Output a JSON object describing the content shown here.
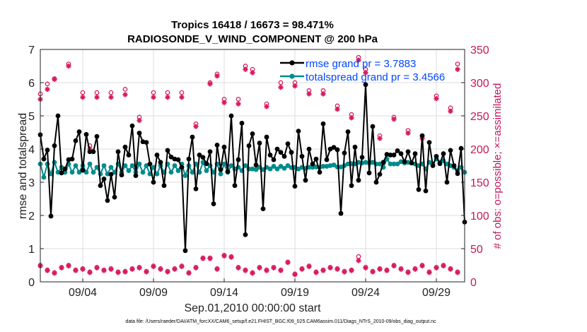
{
  "chart_data": {
    "type": "line",
    "title": "Tropics 16418 / 16673 = 98.471%",
    "subtitle": "RADIOSONDE_V_WIND_COMPONENT @ 200 hPa",
    "xlabel": "Sep.01,2010 00:00:00 start",
    "ylabel": "rmse and totalspread",
    "y2label": "# of obs: o=possible; ×=assimilated",
    "footer": "data file: /Users/raeder/DAI/ATM_forcXX/CAM6_setup/f.e21.FHIST_BGC.f09_025.CAM6assim.011/Diags_NTrS_2010-09/obs_diag_output.nc",
    "xlim": [
      1.0,
      31.0
    ],
    "ylim": [
      0,
      7
    ],
    "y2lim": [
      0,
      350
    ],
    "xticks": [
      4,
      9,
      14,
      19,
      24,
      29
    ],
    "xtick_labels": [
      "09/04",
      "09/09",
      "09/14",
      "09/19",
      "09/24",
      "09/29"
    ],
    "yticks": [
      0,
      1,
      2,
      3,
      4,
      5,
      6,
      7
    ],
    "y2ticks": [
      0,
      50,
      100,
      150,
      200,
      250,
      300,
      350
    ],
    "legend": [
      {
        "name": "rmse grand pr = 3.7883",
        "color": "#000000"
      },
      {
        "name": "totalspread grand pr = 3.4566",
        "color": "#008b8b"
      }
    ],
    "series": [
      {
        "name": "rmse",
        "color": "#000000",
        "x": [
          1.0,
          1.25,
          1.5,
          1.75,
          2.0,
          2.25,
          2.5,
          2.75,
          3.0,
          3.25,
          3.5,
          3.75,
          4.0,
          4.25,
          4.5,
          4.75,
          5.0,
          5.25,
          5.5,
          5.75,
          6.0,
          6.25,
          6.5,
          6.75,
          7.0,
          7.25,
          7.5,
          7.75,
          8.0,
          8.25,
          8.5,
          8.75,
          9.0,
          9.25,
          9.5,
          9.75,
          10.0,
          10.25,
          10.5,
          10.75,
          11.0,
          11.25,
          11.5,
          11.75,
          12.0,
          12.25,
          12.5,
          12.75,
          13.0,
          13.25,
          13.5,
          13.75,
          14.0,
          14.25,
          14.5,
          14.75,
          15.0,
          15.25,
          15.5,
          15.75,
          16.0,
          16.25,
          16.5,
          16.75,
          17.0,
          17.25,
          17.5,
          17.75,
          18.0,
          18.25,
          18.5,
          18.75,
          19.0,
          19.25,
          19.5,
          19.75,
          20.0,
          20.25,
          20.5,
          20.75,
          21.0,
          21.25,
          21.5,
          21.75,
          22.0,
          22.25,
          22.5,
          22.75,
          23.0,
          23.25,
          23.5,
          23.75,
          24.0,
          24.25,
          24.5,
          24.75,
          25.0,
          25.25,
          25.5,
          25.75,
          26.0,
          26.25,
          26.5,
          26.75,
          27.0,
          27.25,
          27.5,
          27.75,
          28.0,
          28.25,
          28.5,
          28.75,
          29.0,
          29.25,
          29.5,
          29.75,
          30.0,
          30.25,
          30.5,
          30.75,
          31.0
        ],
        "values": [
          4.43,
          3.7,
          3.97,
          1.98,
          4.1,
          5.0,
          3.28,
          3.4,
          3.68,
          3.7,
          4.25,
          4.52,
          3.36,
          4.44,
          3.92,
          3.92,
          4.38,
          2.9,
          3.1,
          2.45,
          3.24,
          2.55,
          3.92,
          3.22,
          4.06,
          3.82,
          4.7,
          3.2,
          4.48,
          4.22,
          4.2,
          3.55,
          3.0,
          3.82,
          3.6,
          2.9,
          3.96,
          3.76,
          3.7,
          3.68,
          3.45,
          0.94,
          3.7,
          4.36,
          2.8,
          3.82,
          3.75,
          3.56,
          3.92,
          2.35,
          4.12,
          3.38,
          4.06,
          3.32,
          5.0,
          2.9,
          3.68,
          4.78,
          1.42,
          4.1,
          4.46,
          3.52,
          4.18,
          2.2,
          4.36,
          3.82,
          3.68,
          4.0,
          3.9,
          3.78,
          4.16,
          3.9,
          2.88,
          4.54,
          3.78,
          3.06,
          4.0,
          3.55,
          3.7,
          3.3,
          4.76,
          3.68,
          4.0,
          4.05,
          3.98,
          2.06,
          3.88,
          4.52,
          2.9,
          4.06,
          3.06,
          3.75,
          5.94,
          3.28,
          4.68,
          3.0,
          3.24,
          3.6,
          3.84,
          3.82,
          3.82,
          3.95,
          3.86,
          3.62,
          3.92,
          3.58,
          3.86,
          2.78,
          4.4,
          2.74,
          4.2,
          3.5,
          3.78,
          3.56,
          3.86,
          3.0,
          3.96,
          3.5,
          3.26,
          4.02,
          1.8
        ]
      },
      {
        "name": "totalspread",
        "color": "#008b8b",
        "x": [
          1.0,
          1.25,
          1.5,
          1.75,
          2.0,
          2.25,
          2.5,
          2.75,
          3.0,
          3.25,
          3.5,
          3.75,
          4.0,
          4.25,
          4.5,
          4.75,
          5.0,
          5.25,
          5.5,
          5.75,
          6.0,
          6.25,
          6.5,
          6.75,
          7.0,
          7.25,
          7.5,
          7.75,
          8.0,
          8.25,
          8.5,
          8.75,
          9.0,
          9.25,
          9.5,
          9.75,
          10.0,
          10.25,
          10.5,
          10.75,
          11.0,
          11.25,
          11.5,
          11.75,
          12.0,
          12.25,
          12.5,
          12.75,
          13.0,
          13.25,
          13.5,
          13.75,
          14.0,
          14.25,
          14.5,
          14.75,
          15.0,
          15.25,
          15.5,
          15.75,
          16.0,
          16.25,
          16.5,
          16.75,
          17.0,
          17.25,
          17.5,
          17.75,
          18.0,
          18.25,
          18.5,
          18.75,
          19.0,
          19.25,
          19.5,
          19.75,
          20.0,
          20.25,
          20.5,
          20.75,
          21.0,
          21.25,
          21.5,
          21.75,
          22.0,
          22.25,
          22.5,
          22.75,
          23.0,
          23.25,
          23.5,
          23.75,
          24.0,
          24.25,
          24.5,
          24.75,
          25.0,
          25.25,
          25.5,
          25.75,
          26.0,
          26.25,
          26.5,
          26.75,
          27.0,
          27.25,
          27.5,
          27.75,
          28.0,
          28.25,
          28.5,
          28.75,
          29.0,
          29.25,
          29.5,
          29.75,
          30.0,
          30.25,
          30.5,
          30.75,
          31.0
        ],
        "values": [
          3.55,
          3.15,
          3.55,
          3.25,
          3.6,
          3.3,
          3.45,
          3.3,
          3.55,
          3.3,
          3.5,
          3.3,
          3.5,
          3.3,
          3.55,
          3.3,
          3.45,
          3.25,
          3.5,
          3.25,
          3.45,
          3.3,
          3.55,
          3.3,
          3.5,
          3.35,
          3.5,
          3.3,
          3.55,
          3.3,
          3.5,
          3.25,
          3.45,
          3.25,
          3.5,
          3.3,
          3.55,
          3.3,
          3.5,
          3.35,
          3.55,
          3.2,
          3.5,
          3.3,
          3.55,
          3.3,
          3.6,
          3.35,
          3.5,
          3.3,
          3.55,
          3.25,
          3.55,
          3.3,
          3.5,
          3.4,
          3.45,
          3.35,
          3.5,
          3.4,
          3.4,
          3.38,
          3.45,
          3.38,
          3.45,
          3.4,
          3.48,
          3.4,
          3.48,
          3.42,
          3.5,
          3.44,
          3.45,
          3.4,
          3.45,
          3.42,
          3.45,
          3.45,
          3.46,
          3.45,
          3.48,
          3.48,
          3.5,
          3.52,
          3.46,
          3.46,
          3.5,
          3.55,
          3.56,
          3.55,
          3.6,
          3.58,
          3.6,
          3.58,
          3.6,
          3.55,
          3.55,
          3.45,
          3.7,
          3.55,
          3.55,
          3.55,
          3.62,
          3.58,
          3.6,
          3.58,
          3.55,
          3.5,
          3.55,
          3.4,
          3.6,
          3.55,
          3.7,
          3.6,
          3.65,
          3.55,
          3.5,
          3.45,
          3.35,
          3.45,
          3.3
        ]
      },
      {
        "name": "obs possible",
        "color": "#d81b60",
        "marker": "o",
        "x": [
          1.0,
          1.5,
          2.0,
          3.0,
          4.0,
          4.5,
          5.0,
          6.0,
          7.0,
          8.0,
          9.0,
          10.0,
          11.0,
          12.0,
          13.0,
          13.5,
          14.0,
          15.0,
          15.5,
          16.0,
          17.0,
          18.0,
          19.0,
          20.0,
          21.0,
          22.0,
          23.0,
          23.5,
          24.0,
          25.0,
          26.0,
          27.0,
          28.0,
          29.0,
          30.0,
          30.5,
          1.0,
          1.5,
          2.0,
          2.5,
          3.0,
          3.5,
          4.0,
          4.5,
          5.0,
          5.5,
          6.0,
          6.5,
          7.0,
          7.5,
          8.0,
          8.5,
          9.0,
          9.5,
          10.0,
          10.5,
          11.0,
          11.5,
          12.0,
          12.5,
          13.0,
          13.5,
          14.0,
          14.5,
          15.0,
          15.5,
          16.0,
          16.5,
          17.0,
          17.5,
          18.0,
          18.5,
          19.0,
          19.5,
          20.0,
          20.5,
          21.0,
          21.5,
          22.0,
          22.5,
          23.0,
          23.5,
          24.0,
          24.5,
          25.0,
          25.5,
          26.0,
          26.5,
          27.0,
          27.5,
          28.0,
          28.5,
          29.0,
          29.5,
          30.0,
          30.5
        ],
        "values": [
          283,
          298,
          306,
          328,
          285,
          205,
          285,
          285,
          290,
          248,
          285,
          285,
          285,
          238,
          300,
          313,
          275,
          275,
          325,
          320,
          268,
          300,
          300,
          288,
          288,
          265,
          252,
          338,
          320,
          220,
          248,
          228,
          220,
          280,
          262,
          328,
          25,
          18,
          14,
          22,
          25,
          18,
          20,
          15,
          22,
          18,
          20,
          15,
          16,
          20,
          22,
          16,
          24,
          20,
          16,
          20,
          24,
          14,
          22,
          36,
          36,
          20,
          40,
          38,
          22,
          18,
          14,
          22,
          18,
          22,
          18,
          30,
          12,
          20,
          24,
          15,
          18,
          22,
          20,
          16,
          18,
          38,
          22,
          16,
          20,
          18,
          25,
          20,
          15,
          20,
          25,
          15,
          22,
          25,
          20,
          15
        ]
      },
      {
        "name": "obs assimilated",
        "color": "#d81b60",
        "marker": "x",
        "x": [
          1.0,
          1.5,
          2.0,
          3.0,
          4.0,
          4.5,
          5.0,
          6.0,
          7.0,
          8.0,
          9.0,
          10.0,
          11.0,
          12.0,
          13.0,
          13.5,
          14.0,
          15.0,
          15.5,
          16.0,
          17.0,
          18.0,
          19.0,
          20.0,
          21.0,
          22.0,
          23.0,
          23.5,
          24.0,
          25.0,
          26.0,
          27.0,
          28.0,
          29.0,
          30.0,
          30.5,
          1.0,
          1.5,
          2.0,
          2.5,
          3.0,
          3.5,
          4.0,
          4.5,
          5.0,
          5.5,
          6.0,
          6.5,
          7.0,
          7.5,
          8.0,
          8.5,
          9.0,
          9.5,
          10.0,
          10.5,
          11.0,
          11.5,
          12.0,
          12.5,
          13.0,
          13.5,
          14.0,
          14.5,
          15.0,
          15.5,
          16.0,
          16.5,
          17.0,
          17.5,
          18.0,
          18.5,
          19.0,
          19.5,
          20.0,
          20.5,
          21.0,
          21.5,
          22.0,
          22.5,
          23.0,
          23.5,
          24.0,
          24.5,
          25.0,
          25.5,
          26.0,
          26.5,
          27.0,
          27.5,
          28.0,
          28.5,
          29.0,
          29.5,
          30.0,
          30.5
        ],
        "values": [
          275,
          290,
          305,
          325,
          278,
          200,
          278,
          278,
          282,
          243,
          278,
          278,
          278,
          234,
          298,
          310,
          270,
          268,
          320,
          315,
          264,
          293,
          295,
          283,
          283,
          260,
          247,
          334,
          315,
          216,
          245,
          224,
          216,
          276,
          257,
          320,
          24,
          17,
          13,
          21,
          24,
          17,
          19,
          14,
          21,
          17,
          19,
          14,
          15,
          19,
          21,
          15,
          23,
          19,
          15,
          19,
          23,
          13,
          21,
          35,
          35,
          19,
          39,
          37,
          21,
          17,
          13,
          21,
          17,
          21,
          17,
          29,
          11,
          19,
          23,
          14,
          17,
          21,
          19,
          15,
          17,
          32,
          21,
          15,
          19,
          17,
          24,
          19,
          14,
          19,
          24,
          14,
          21,
          24,
          19,
          14
        ]
      }
    ]
  }
}
